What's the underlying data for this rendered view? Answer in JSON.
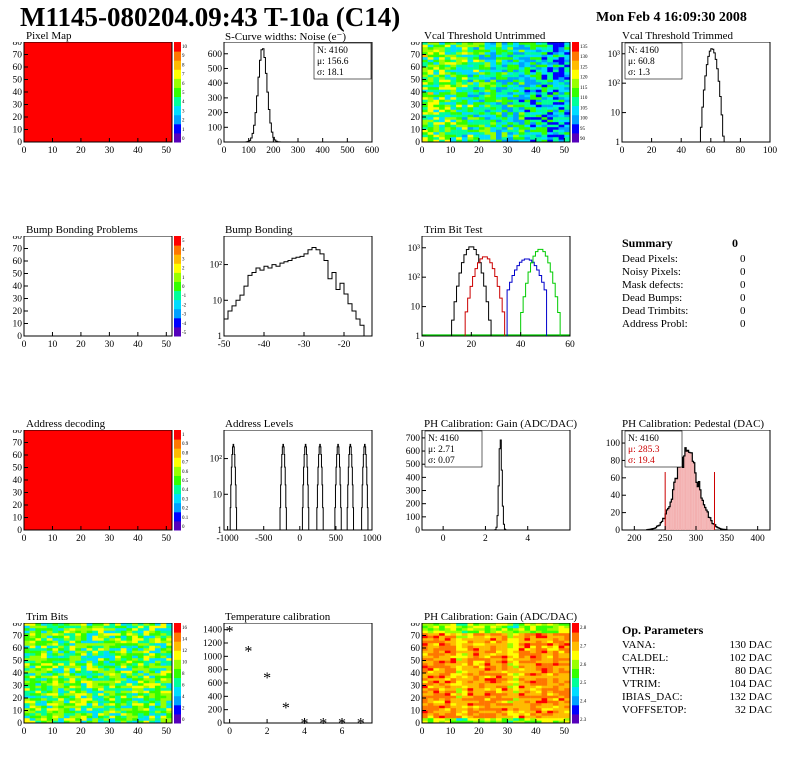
{
  "title": "M1145-080204.09:43 T-10a (C14)",
  "datetime": "Mon Feb  4 16:09:30 2008",
  "colors": {
    "palette": [
      "#5500bb",
      "#0000ff",
      "#00a0ff",
      "#00ddff",
      "#00ff99",
      "#33ff00",
      "#99ff00",
      "#ffff00",
      "#ffbb00",
      "#ff7700",
      "#ff0000"
    ],
    "curve1": "#000000",
    "curve2": "#cc0000",
    "curve3": "#0000cc",
    "curve4": "#00cc00",
    "stat_red": "#cc0000"
  },
  "panels": {
    "pixel_map": {
      "title": "Pixel Map",
      "xticks": [
        "0",
        "10",
        "20",
        "30",
        "40",
        "50"
      ],
      "yticks": [
        "0",
        "10",
        "20",
        "30",
        "40",
        "50",
        "60",
        "70",
        "80"
      ],
      "zticks": [
        "10",
        "9",
        "8",
        "7",
        "6",
        "5",
        "4",
        "3",
        "2",
        "1",
        "0"
      ],
      "xmax": 52,
      "ymax": 80,
      "fill": "#ff0000"
    },
    "scurve": {
      "title": "S-Curve widths: Noise (e⁻)",
      "xticks": [
        "0",
        "100",
        "200",
        "300",
        "400",
        "500",
        "600"
      ],
      "yticks": [
        "0",
        "100",
        "200",
        "300",
        "400",
        "500",
        "600"
      ],
      "stats": [
        "N: 4160",
        "μ: 156.6",
        "σ: 18.1"
      ],
      "xmax": 600,
      "ymax": 680,
      "mean": 156.6,
      "sigma": 18.1,
      "peak": 640
    },
    "vcal_untrimmed": {
      "title": "Vcal Threshold Untrimmed",
      "xticks": [
        "0",
        "10",
        "20",
        "30",
        "40",
        "50"
      ],
      "yticks": [
        "0",
        "10",
        "20",
        "30",
        "40",
        "50",
        "60",
        "70",
        "80"
      ],
      "zticks": [
        "135",
        "130",
        "125",
        "120",
        "115",
        "110",
        "105",
        "100",
        "95",
        "90"
      ],
      "xmax": 52,
      "ymax": 80
    },
    "vcal_trimmed": {
      "title": "Vcal Threshold Trimmed",
      "stats": [
        "N: 4160",
        "μ: 60.8",
        "σ:  1.3"
      ],
      "xticks": [
        "0",
        "20",
        "40",
        "60",
        "80",
        "100"
      ],
      "yticks": [
        "1",
        "10",
        "10²",
        "10³"
      ],
      "xmax": 100,
      "mean": 60.8,
      "sigma": 1.3,
      "peak": 1500
    },
    "bump_problems": {
      "title": "Bump Bonding Problems",
      "xticks": [
        "0",
        "10",
        "20",
        "30",
        "40",
        "50"
      ],
      "yticks": [
        "0",
        "10",
        "20",
        "30",
        "40",
        "50",
        "60",
        "70",
        "80"
      ],
      "zticks": [
        "5",
        "4",
        "3",
        "2",
        "1",
        "0",
        "-1",
        "-2",
        "-3",
        "-4",
        "-5"
      ],
      "xmax": 52,
      "ymax": 80
    },
    "bump_bonding": {
      "title": "Bump Bonding",
      "xticks": [
        "-50",
        "-40",
        "-30",
        "-20"
      ],
      "yticks": [
        "1",
        "10",
        "10²"
      ],
      "xlim": [
        -50,
        -13
      ],
      "x": [
        -50,
        -49,
        -48,
        -47,
        -46,
        -45,
        -44,
        -43,
        -42,
        -41,
        -40,
        -39,
        -38,
        -37,
        -36,
        -35,
        -34,
        -33,
        -32,
        -31,
        -30,
        -29,
        -28,
        -27,
        -26,
        -25,
        -24,
        -23,
        -22,
        -21,
        -20,
        -19,
        -18,
        -17,
        -16,
        -15
      ],
      "y": [
        3,
        5,
        7,
        10,
        14,
        25,
        50,
        60,
        80,
        70,
        90,
        80,
        100,
        90,
        110,
        120,
        130,
        150,
        160,
        170,
        200,
        260,
        300,
        260,
        200,
        130,
        40,
        60,
        20,
        30,
        15,
        8,
        5,
        3,
        2,
        1
      ]
    },
    "trim_bit_test": {
      "title": "Trim Bit Test",
      "xticks": [
        "0",
        "20",
        "40",
        "60"
      ],
      "yticks": [
        "1",
        "10",
        "10²",
        "10³"
      ],
      "xmax": 60,
      "curves": [
        {
          "mean": 20.0,
          "sigma": 1.3,
          "peak": 1100
        },
        {
          "mean": 25.5,
          "sigma": 1.5,
          "peak": 500
        },
        {
          "mean": 42.5,
          "sigma": 2.0,
          "peak": 420
        },
        {
          "mean": 48.0,
          "sigma": 1.4,
          "peak": 900
        }
      ]
    },
    "address_decoding": {
      "title": "Address decoding",
      "xticks": [
        "0",
        "10",
        "20",
        "30",
        "40",
        "50"
      ],
      "yticks": [
        "0",
        "10",
        "20",
        "30",
        "40",
        "50",
        "60",
        "70",
        "80"
      ],
      "zticks": [
        "1",
        "0.9",
        "0.8",
        "0.7",
        "0.6",
        "0.5",
        "0.4",
        "0.3",
        "0.2",
        "0.1",
        "0"
      ],
      "xmax": 52,
      "ymax": 80,
      "fill": "#ff0000"
    },
    "address_levels": {
      "title": "Address Levels",
      "xticks": [
        "-1000",
        "-500",
        "0",
        "500",
        "1000"
      ],
      "yticks": [
        "1",
        "10",
        "10²"
      ],
      "xlim": [
        -1050,
        1000
      ],
      "peaks": [
        -920,
        -230,
        80,
        280,
        530,
        700,
        900
      ],
      "peak_height": 250
    },
    "ph_gain": {
      "title": "PH Calibration: Gain (ADC/DAC)",
      "stats": [
        "N: 4160",
        "μ: 2.71",
        "σ: 0.07"
      ],
      "xticks": [
        "0",
        "2",
        "4"
      ],
      "yticks": [
        "0",
        "100",
        "200",
        "300",
        "400",
        "500",
        "600",
        "700"
      ],
      "xlim": [
        -1,
        6
      ],
      "ymax": 760,
      "mean": 2.71,
      "sigma": 0.07,
      "peak": 700
    },
    "ph_pedestal": {
      "title": "PH Calibration: Pedestal (DAC)",
      "stats": [
        "N: 4160",
        "μ: 285.3",
        "σ: 19.4"
      ],
      "xticks": [
        "200",
        "250",
        "300",
        "350",
        "400"
      ],
      "yticks": [
        "0",
        "20",
        "40",
        "60",
        "80",
        "100"
      ],
      "xlim": [
        180,
        420
      ],
      "ymax": 115,
      "mean": 285.3,
      "sigma": 19.4,
      "peak": 85,
      "cut_low": 250,
      "cut_high": 330
    },
    "trim_bits": {
      "title": "Trim Bits",
      "xticks": [
        "0",
        "10",
        "20",
        "30",
        "40",
        "50"
      ],
      "yticks": [
        "0",
        "10",
        "20",
        "30",
        "40",
        "50",
        "60",
        "70",
        "80"
      ],
      "zticks": [
        "16",
        "14",
        "12",
        "10",
        "8",
        "6",
        "4",
        "2",
        "0"
      ],
      "xmax": 52,
      "ymax": 80
    },
    "temp_calib": {
      "title": "Temperature calibration",
      "xticks": [
        "0",
        "2",
        "4",
        "6"
      ],
      "yticks": [
        "0",
        "200",
        "400",
        "600",
        "800",
        "1000",
        "1200",
        "1400"
      ],
      "xlim": [
        -0.3,
        7.6
      ],
      "ymax": 1500,
      "x": [
        0,
        1,
        2,
        3,
        4,
        5,
        6,
        7
      ],
      "y": [
        1390,
        1090,
        690,
        240,
        5,
        5,
        5,
        5
      ]
    },
    "ph_gain_map": {
      "title": "PH Calibration: Gain (ADC/DAC)",
      "xticks": [
        "0",
        "10",
        "20",
        "30",
        "40",
        "50"
      ],
      "yticks": [
        "0",
        "10",
        "20",
        "30",
        "40",
        "50",
        "60",
        "70",
        "80"
      ],
      "zticks": [
        "2.8",
        "2.7",
        "2.6",
        "2.5",
        "2.4",
        "2.3"
      ],
      "xmax": 52,
      "ymax": 80
    }
  },
  "summary": {
    "title": "Summary",
    "total": "0",
    "rows": [
      {
        "label": "Dead Pixels:",
        "value": "0"
      },
      {
        "label": "Noisy Pixels:",
        "value": "0"
      },
      {
        "label": "Mask defects:",
        "value": "0"
      },
      {
        "label": "Dead Bumps:",
        "value": "0"
      },
      {
        "label": "Dead Trimbits:",
        "value": "0"
      },
      {
        "label": "Address Probl:",
        "value": "0"
      }
    ]
  },
  "op_params": {
    "title": "Op. Parameters",
    "rows": [
      {
        "label": "VANA:",
        "value": "130 DAC"
      },
      {
        "label": "CALDEL:",
        "value": "102 DAC"
      },
      {
        "label": "VTHR:",
        "value": "80 DAC"
      },
      {
        "label": "VTRIM:",
        "value": "104 DAC"
      },
      {
        "label": "IBIAS_DAC:",
        "value": "132 DAC"
      },
      {
        "label": "VOFFSETOP:",
        "value": "32 DAC"
      }
    ]
  }
}
